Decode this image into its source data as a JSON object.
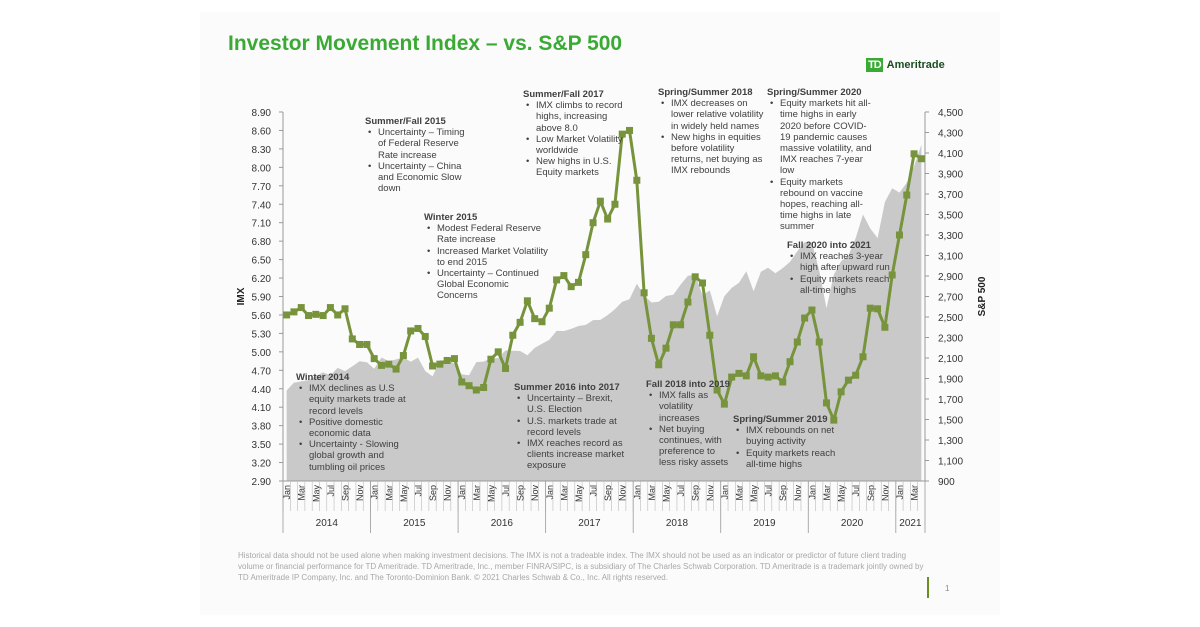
{
  "title": "Investor Movement Index – vs. S&P 500",
  "logo": {
    "mark": "TD",
    "name": "Ameritrade"
  },
  "chart_data": {
    "type": "line",
    "ylabel": "IMX",
    "y2label": "S&P 500",
    "ylim": [
      2.9,
      8.9
    ],
    "y2lim": [
      900,
      4500
    ],
    "yticks": [
      "8.90",
      "8.60",
      "8.30",
      "8.00",
      "7.70",
      "7.40",
      "7.10",
      "6.80",
      "6.50",
      "6.20",
      "5.90",
      "5.60",
      "5.30",
      "5.00",
      "4.70",
      "4.40",
      "4.10",
      "3.80",
      "3.50",
      "3.20",
      "2.90"
    ],
    "y2ticks": [
      "4,500",
      "4,300",
      "4,100",
      "3,900",
      "3,700",
      "3,500",
      "3,300",
      "3,100",
      "2,900",
      "2,700",
      "2,500",
      "2,300",
      "2,100",
      "1,900",
      "1,700",
      "1,500",
      "1,300",
      "1,100",
      "900"
    ],
    "month_labels": [
      "Jan",
      "Mar",
      "May",
      "Jul",
      "Sep",
      "Nov"
    ],
    "years": [
      "2014",
      "2015",
      "2016",
      "2017",
      "2018",
      "2019",
      "2020",
      "2021"
    ],
    "start": "2014-01",
    "end": "2021-04",
    "series": [
      {
        "name": "IMX",
        "type": "line",
        "color": "#77933c",
        "values": [
          5.6,
          5.65,
          5.72,
          5.59,
          5.61,
          5.59,
          5.72,
          5.6,
          5.7,
          5.21,
          5.12,
          5.12,
          4.89,
          4.78,
          4.8,
          4.72,
          4.94,
          5.34,
          5.38,
          5.25,
          4.77,
          4.8,
          4.86,
          4.89,
          4.51,
          4.45,
          4.38,
          4.42,
          4.88,
          5.0,
          4.73,
          5.27,
          5.48,
          5.83,
          5.54,
          5.49,
          5.71,
          6.17,
          6.24,
          6.06,
          6.13,
          6.58,
          7.1,
          7.45,
          7.16,
          7.4,
          8.54,
          8.6,
          7.79,
          5.96,
          5.22,
          4.79,
          5.06,
          5.44,
          5.44,
          5.81,
          6.22,
          6.12,
          5.27,
          4.38,
          4.15,
          4.59,
          4.65,
          4.61,
          4.92,
          4.61,
          4.59,
          4.61,
          4.51,
          4.84,
          5.16,
          5.55,
          5.68,
          5.16,
          4.17,
          3.89,
          4.35,
          4.54,
          4.62,
          4.92,
          5.71,
          5.7,
          5.4,
          6.25,
          6.9,
          7.55,
          8.22,
          8.14
        ]
      },
      {
        "name": "S&P 500",
        "type": "area",
        "color": "#c9c9c9",
        "values": [
          1783,
          1859,
          1872,
          1884,
          1924,
          1960,
          1931,
          2003,
          1972,
          2018,
          2068,
          2059,
          1995,
          2105,
          2068,
          2086,
          2107,
          2063,
          2104,
          1972,
          1920,
          2079,
          2080,
          2044,
          1940,
          1932,
          2060,
          2065,
          2097,
          2099,
          2174,
          2171,
          2168,
          2126,
          2199,
          2239,
          2279,
          2364,
          2363,
          2384,
          2412,
          2423,
          2470,
          2472,
          2519,
          2575,
          2648,
          2674,
          2824,
          2714,
          2641,
          2648,
          2705,
          2718,
          2816,
          2902,
          2914,
          2712,
          2760,
          2507,
          2704,
          2784,
          2834,
          2946,
          2752,
          2942,
          2980,
          2926,
          2977,
          3038,
          3141,
          3231,
          3226,
          2954,
          2585,
          2912,
          3044,
          3100,
          3271,
          3500,
          3363,
          3270,
          3622,
          3756,
          3714,
          3811,
          3973,
          4181
        ]
      }
    ]
  },
  "annotations": [
    {
      "title": "Summer/Fall 2015",
      "bullets": [
        "Uncertainty – Timing of Federal Reserve Rate increase",
        "Uncertainty – China and Economic Slow down"
      ]
    },
    {
      "title": "Summer/Fall 2017",
      "bullets": [
        "IMX climbs to record highs, increasing above 8.0",
        "Low Market Volatility worldwide",
        "New highs in U.S. Equity markets"
      ]
    },
    {
      "title": "Spring/Summer 2018",
      "bullets": [
        "IMX decreases on lower relative volatility in widely held names",
        "New highs in equities before volatility returns, net buying as IMX rebounds"
      ]
    },
    {
      "title": "Spring/Summer 2020",
      "bullets": [
        "Equity markets hit all-time highs in early 2020 before COVID-19 pandemic causes massive volatility, and IMX reaches 7-year low",
        "Equity markets rebound on vaccine hopes, reaching all-time highs in late summer"
      ]
    },
    {
      "title": "Winter 2015",
      "bullets": [
        "Modest Federal Reserve Rate increase",
        "Increased Market Volatility to end 2015",
        "Uncertainty – Continued Global Economic Concerns"
      ]
    },
    {
      "title": "Fall 2020 into 2021",
      "bullets": [
        "IMX reaches 3-year high after upward run",
        "Equity markets reach all-time highs"
      ]
    },
    {
      "title": "Winter 2014",
      "bullets": [
        "IMX declines as U.S equity markets trade at record levels",
        "Positive domestic economic data",
        "Uncertainty - Slowing global growth and tumbling oil prices"
      ]
    },
    {
      "title": "Summer 2016 into 2017",
      "bullets": [
        "Uncertainty – Brexit, U.S. Election",
        "U.S. markets trade at record levels",
        "IMX reaches record as clients increase market exposure"
      ]
    },
    {
      "title": "Fall 2018 into 2019",
      "bullets": [
        "IMX falls as volatility increases",
        "Net buying continues, with preference to less risky assets"
      ]
    },
    {
      "title": "Spring/Summer 2019",
      "bullets": [
        "IMX rebounds on net buying activity",
        "Equity markets reach all-time highs"
      ]
    }
  ],
  "footer": "Historical data should not be used alone when making investment decisions. The IMX is not a tradeable index. The IMX should not be used as an indicator or predictor of future client trading volume or financial performance for TD Ameritrade. TD Ameritrade, Inc., member FINRA/SIPC, is a subsidiary of The Charles Schwab Corporation. TD Ameritrade is a trademark jointly owned by TD Ameritrade IP Company, Inc. and The Toronto-Dominion Bank. © 2021 Charles Schwab & Co., Inc. All rights reserved.",
  "page_number": "1"
}
